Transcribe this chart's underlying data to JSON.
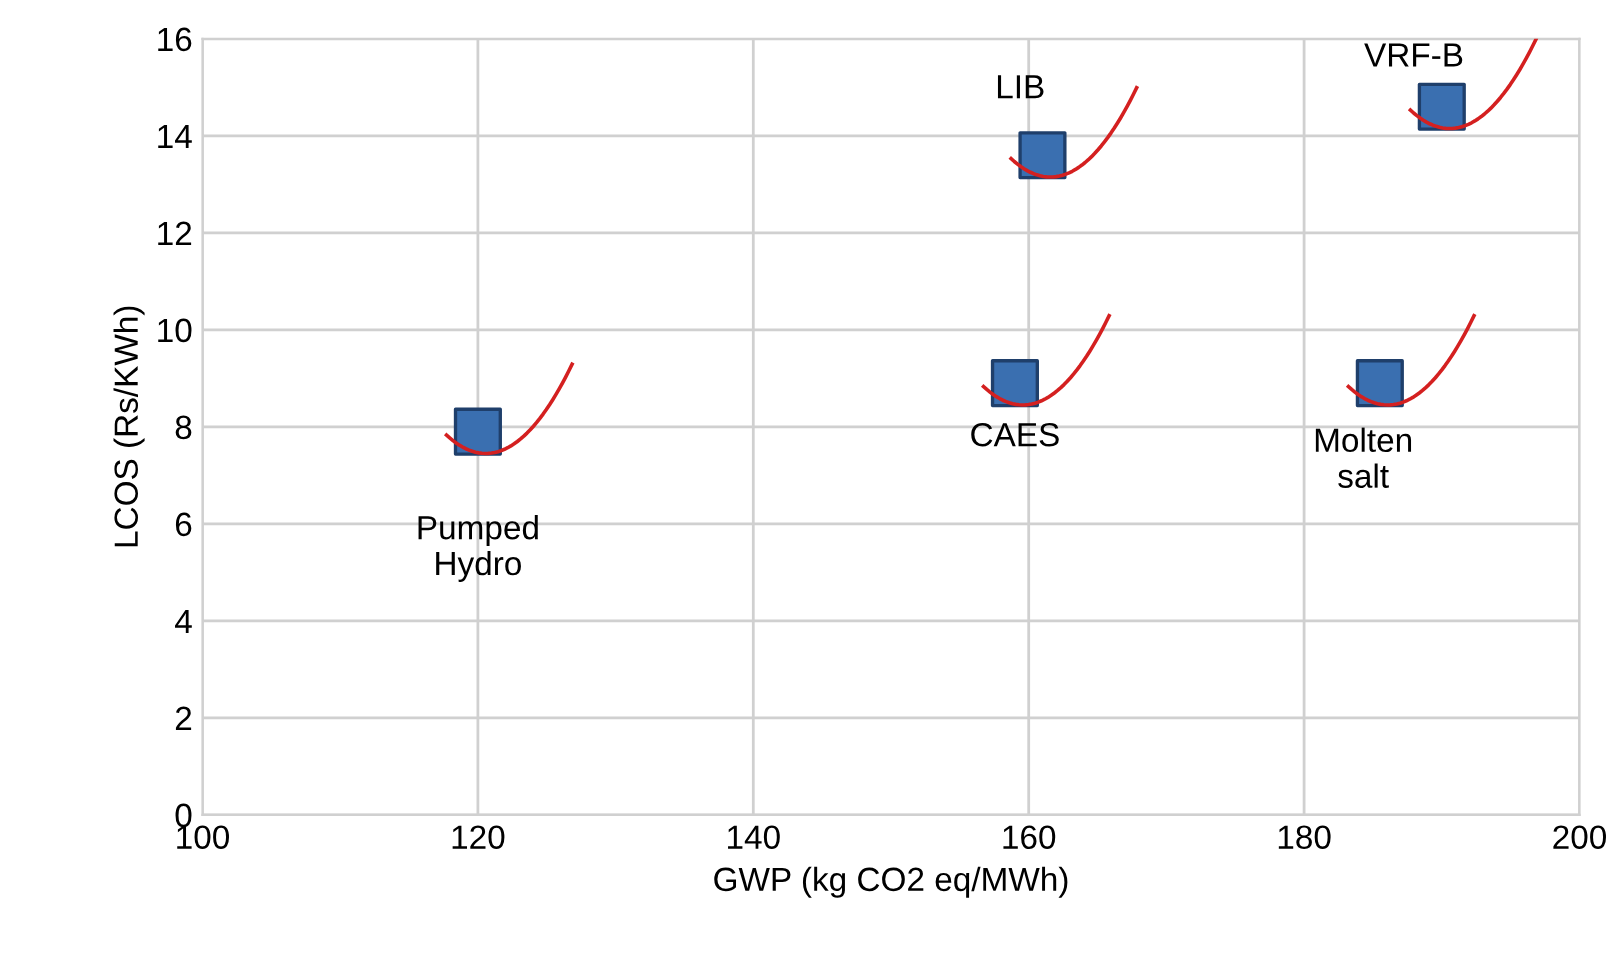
{
  "chart_data": {
    "type": "scatter",
    "xlabel": "GWP (kg CO2 eq/MWh)",
    "ylabel": "LCOS (Rs/KWh)",
    "x": [
      120,
      161,
      190,
      159,
      185.5
    ],
    "series": [
      {
        "color": "#3a6fb0",
        "values": [
          7.9,
          13.6,
          14.6,
          8.9,
          8.9
        ]
      }
    ],
    "marker": "square",
    "grid": true,
    "xlim": [
      100,
      200
    ],
    "xticks": [
      100,
      120,
      140,
      160,
      180,
      200
    ],
    "ylim": [
      0,
      16
    ],
    "yticks": [
      0,
      2,
      4,
      6,
      8,
      10,
      12,
      14,
      16
    ],
    "annotations": [
      {
        "text": "Pumped\nHydro",
        "x": 120,
        "y": 7.9
      },
      {
        "text": "LIB",
        "x": 161,
        "y": 13.6
      },
      {
        "text": "VRF-B",
        "x": 190,
        "y": 14.6
      },
      {
        "text": "CAES",
        "x": 159,
        "y": 8.9
      },
      {
        "text": "Molten\nsalt",
        "x": 185.5,
        "y": 8.9
      }
    ]
  }
}
